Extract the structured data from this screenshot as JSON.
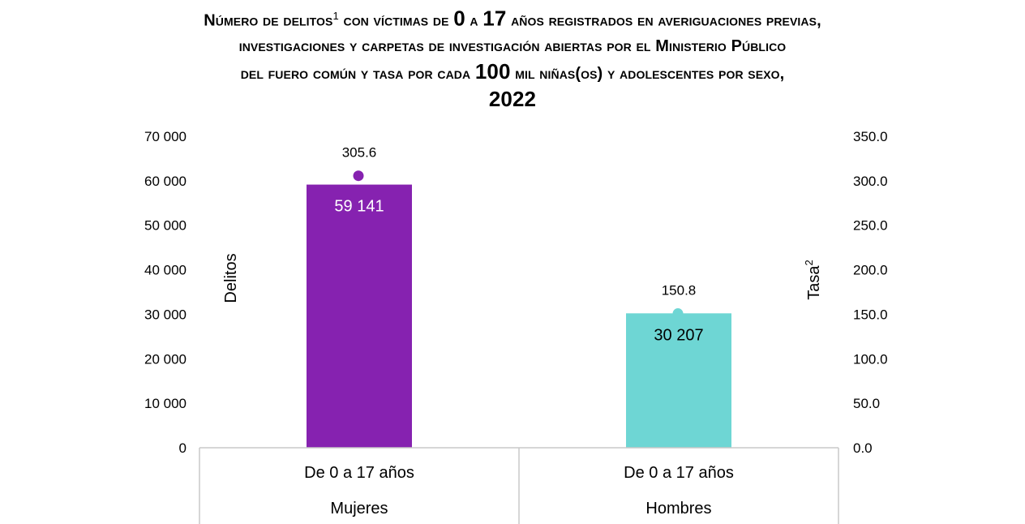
{
  "title": {
    "line1_pre": "Número de delitos",
    "line1_sup": "1",
    "line1_mid1": " con víctimas de ",
    "line1_n0": "0",
    "line1_mid2": " a ",
    "line1_n17": "17",
    "line1_post": " años registrados en averiguaciones previas,",
    "line2": "investigaciones y carpetas de investigación abiertas por el Ministerio Público",
    "line3_pre": "del fuero común y tasa por cada ",
    "line3_n100": "100",
    "line3_post": " mil niñas(os) y adolescentes por sexo,",
    "line4": "2022"
  },
  "chart_data": {
    "type": "bar",
    "categories": [
      "De 0 a 17 años",
      "De 0 a 17 años"
    ],
    "groups": [
      "Mujeres",
      "Hombres"
    ],
    "series": [
      {
        "name": "Delitos",
        "axis": "left",
        "values": [
          59141,
          30207
        ],
        "labels": [
          "59 141",
          "30 207"
        ],
        "colors": [
          "#8622b0",
          "#6ed6d4"
        ],
        "label_colors": [
          "#ffffff",
          "#000000"
        ]
      },
      {
        "name": "Tasa",
        "axis": "right",
        "type": "point",
        "values": [
          305.6,
          150.8
        ],
        "labels": [
          "305.6",
          "150.8"
        ],
        "colors": [
          "#8622b0",
          "#6ed6d4"
        ]
      }
    ],
    "y_left": {
      "label": "Delitos",
      "min": 0,
      "max": 70000,
      "ticks": [
        "0",
        "10 000",
        "20 000",
        "30 000",
        "40 000",
        "50 000",
        "60 000",
        "70 000"
      ]
    },
    "y_right": {
      "label": "Tasa",
      "label_sup": "2",
      "min": 0,
      "max": 350,
      "ticks": [
        "0.0",
        "50.0",
        "100.0",
        "150.0",
        "200.0",
        "250.0",
        "300.0",
        "350.0"
      ]
    },
    "grid": false,
    "legend": "none"
  }
}
